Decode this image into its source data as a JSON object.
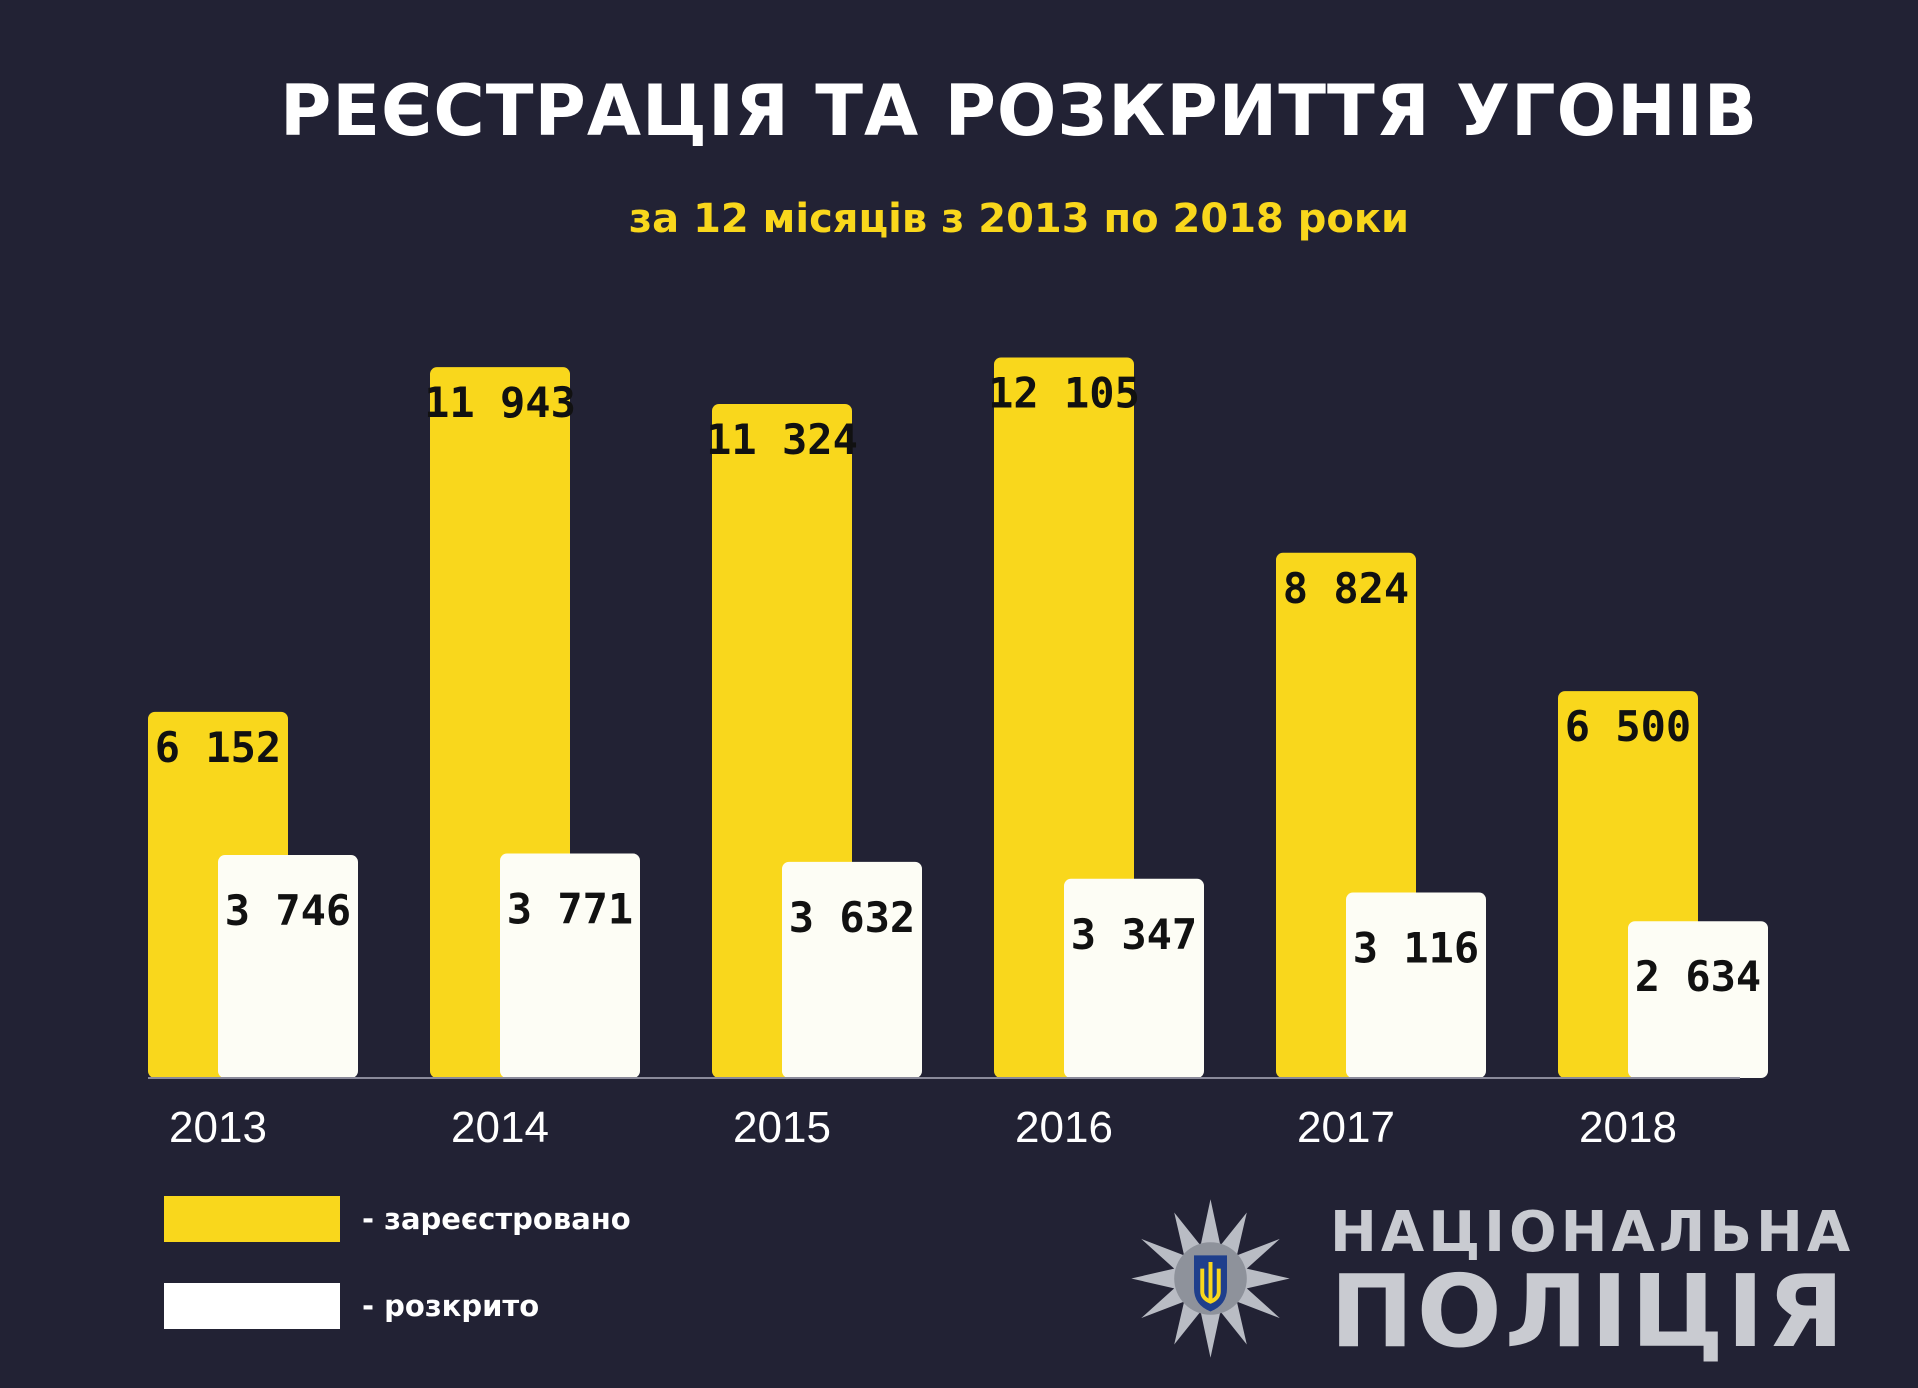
{
  "title": "РЕЄСТРАЦІЯ ТА РОЗКРИТТЯ УГОНІВ",
  "subtitle": "за 12 місяців з 2013 по 2018 роки",
  "chart_data": {
    "type": "bar",
    "categories": [
      "2013",
      "2014",
      "2015",
      "2016",
      "2017",
      "2018"
    ],
    "series": [
      {
        "name": "зареєстровано",
        "values": [
          6152,
          11943,
          11324,
          12105,
          8824,
          6500
        ],
        "labels": [
          "6 152",
          "11 943",
          "11 324",
          "12 105",
          "8 824",
          "6 500"
        ],
        "color": "#f9d71c"
      },
      {
        "name": "розкрито",
        "values": [
          3746,
          3771,
          3632,
          3347,
          3116,
          2634
        ],
        "labels": [
          "3 746",
          "3 771",
          "3 632",
          "3 347",
          "3 116",
          "2 634"
        ],
        "color": "#fdfdf5"
      }
    ],
    "ylim": [
      0,
      12500
    ],
    "grid": false
  },
  "legend": {
    "registered": "- зареєстровано",
    "solved": "- розкрито"
  },
  "logo": {
    "line1": "НАЦІОНАЛЬНА",
    "line2": "ПОЛІЦІЯ",
    "icon": "police-star-emblem-icon"
  }
}
